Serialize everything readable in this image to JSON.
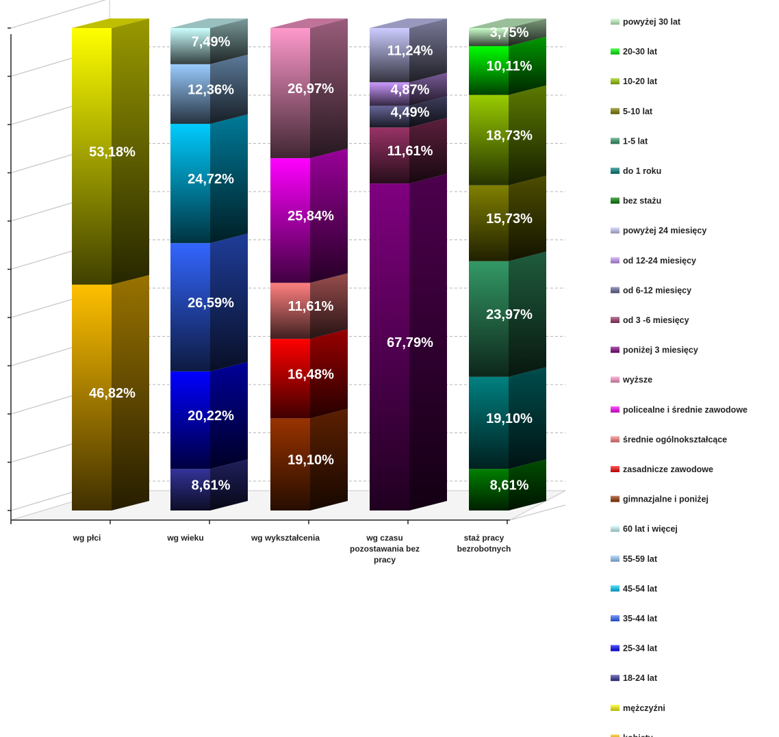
{
  "chart_data": {
    "type": "bar",
    "stacked": true,
    "percent_stacked": true,
    "three_d": true,
    "title": "",
    "xlabel": "",
    "ylabel": "",
    "ylim": [
      0,
      100
    ],
    "grid": true,
    "legend_position": "right",
    "categories": [
      [
        "wg płci"
      ],
      [
        "wg wieku"
      ],
      [
        "wg wykształcenia"
      ],
      [
        "wg czasu",
        "pozostawania bez",
        "pracy"
      ],
      [
        "staż pracy",
        "bezrobotnych"
      ]
    ],
    "series": [
      {
        "name": "kobiety",
        "color": "#ffc000",
        "values": [
          46.82,
          null,
          null,
          null,
          null
        ]
      },
      {
        "name": "mężczyźni",
        "color": "#ffff00",
        "values": [
          53.18,
          null,
          null,
          null,
          null
        ]
      },
      {
        "name": "18-24 lat",
        "color": "#333399",
        "values": [
          null,
          8.61,
          null,
          null,
          null
        ]
      },
      {
        "name": "25-34 lat",
        "color": "#0000ff",
        "values": [
          null,
          20.22,
          null,
          null,
          null
        ]
      },
      {
        "name": "35-44 lat",
        "color": "#3366ff",
        "values": [
          null,
          26.59,
          null,
          null,
          null
        ]
      },
      {
        "name": "45-54 lat",
        "color": "#00ccff",
        "values": [
          null,
          24.72,
          null,
          null,
          null
        ]
      },
      {
        "name": "55-59 lat",
        "color": "#99ccff",
        "values": [
          null,
          12.36,
          null,
          null,
          null
        ]
      },
      {
        "name": "60 lat i więcej",
        "color": "#ccffff",
        "values": [
          null,
          7.49,
          null,
          null,
          null
        ]
      },
      {
        "name": "gimnazjalne i poniżej",
        "color": "#993300",
        "values": [
          null,
          null,
          19.1,
          null,
          null
        ]
      },
      {
        "name": "zasadnicze zawodowe",
        "color": "#ff0000",
        "values": [
          null,
          null,
          16.48,
          null,
          null
        ]
      },
      {
        "name": "średnie ogólnokształcące",
        "color": "#ff8080",
        "values": [
          null,
          null,
          11.61,
          null,
          null
        ]
      },
      {
        "name": "policealne i średnie zawodowe",
        "color": "#ff00ff",
        "values": [
          null,
          null,
          25.84,
          null,
          null
        ]
      },
      {
        "name": "wyższe",
        "color": "#ff99cc",
        "values": [
          null,
          null,
          26.97,
          null,
          null
        ]
      },
      {
        "name": "poniżej 3 miesięcy",
        "color": "#800080",
        "values": [
          null,
          null,
          null,
          67.79,
          null
        ]
      },
      {
        "name": "od 3 -6 miesięcy",
        "color": "#993366",
        "values": [
          null,
          null,
          null,
          11.61,
          null
        ]
      },
      {
        "name": "od 6-12 miesięcy",
        "color": "#666699",
        "values": [
          null,
          null,
          null,
          4.49,
          null
        ]
      },
      {
        "name": "od 12-24 miesięcy",
        "color": "#cc99ff",
        "values": [
          null,
          null,
          null,
          4.87,
          null
        ]
      },
      {
        "name": "powyżej 24 miesięcy",
        "color": "#ccccff",
        "values": [
          null,
          null,
          null,
          11.24,
          null
        ]
      },
      {
        "name": "bez stażu",
        "color": "#008000",
        "values": [
          null,
          null,
          null,
          null,
          8.61
        ]
      },
      {
        "name": "do 1 roku",
        "color": "#008080",
        "values": [
          null,
          null,
          null,
          null,
          19.1
        ]
      },
      {
        "name": "1-5 lat",
        "color": "#339966",
        "values": [
          null,
          null,
          null,
          null,
          23.97
        ]
      },
      {
        "name": "5-10 lat",
        "color": "#808000",
        "values": [
          null,
          null,
          null,
          null,
          15.73
        ]
      },
      {
        "name": "10-20 lat",
        "color": "#99cc00",
        "values": [
          null,
          null,
          null,
          null,
          18.73
        ]
      },
      {
        "name": "20-30 lat",
        "color": "#00ff00",
        "values": [
          null,
          null,
          null,
          null,
          10.11
        ]
      },
      {
        "name": "powyżej 30 lat",
        "color": "#ccffcc",
        "values": [
          null,
          null,
          null,
          null,
          3.75
        ]
      }
    ],
    "data_labels": [
      [
        "46,82%",
        "53,18%"
      ],
      [
        "8,61%",
        "20,22%",
        "26,59%",
        "24,72%",
        "12,36%",
        "7,49%"
      ],
      [
        "19,10%",
        "16,48%",
        "11,61%",
        "25,84%",
        "26,97%"
      ],
      [
        "67,79%",
        "11,61%",
        "4,49%",
        "4,87%",
        "11,24%"
      ],
      [
        "8,61%",
        "19,10%",
        "23,97%",
        "15,73%",
        "18,73%",
        "10,11%",
        "3,75%"
      ]
    ],
    "legend": [
      "powyżej 30 lat",
      "20-30 lat",
      "10-20 lat",
      "5-10 lat",
      "1-5 lat",
      "do 1 roku",
      "bez stażu",
      "powyżej 24 miesięcy",
      "od 12-24 miesięcy",
      "od 6-12 miesięcy",
      "od 3 -6 miesięcy",
      "poniżej 3 miesięcy",
      "wyższe",
      "policealne i średnie zawodowe",
      "średnie ogólnokształcące",
      "zasadnicze zawodowe",
      "gimnazjalne i poniżej",
      "60 lat i więcej",
      "55-59 lat",
      "45-54 lat",
      "35-44 lat",
      "25-34 lat",
      "18-24 lat",
      "mężczyźni",
      "kobiety"
    ]
  }
}
